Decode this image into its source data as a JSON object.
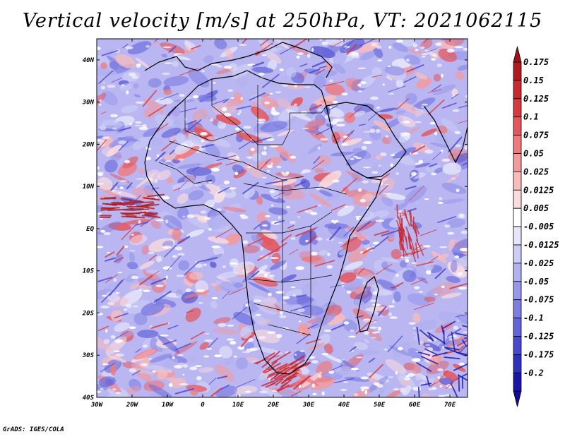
{
  "title": "Vertical velocity [m/s] at 250hPa, VT: 2021062115",
  "credit": "GrADS: IGES/COLA",
  "map": {
    "lat_labels": [
      "40N",
      "30N",
      "20N",
      "10N",
      "EQ",
      "10S",
      "20S",
      "30S",
      "40S"
    ],
    "lon_labels": [
      "30W",
      "20W",
      "10W",
      "0",
      "10E",
      "20E",
      "30E",
      "40E",
      "50E",
      "60E",
      "70E"
    ],
    "lat_range": [
      -40,
      45
    ],
    "lon_range": [
      -30,
      75
    ],
    "field": "vertical velocity",
    "colors": {
      "strong_up": "#b8141a",
      "up": "#f28a8a",
      "neutral": "#ffffff",
      "down": "#8c86ea",
      "strong_down": "#2a1fb0",
      "coast": "#000000"
    }
  },
  "colorbar": {
    "values": [
      "0.175",
      "0.15",
      "0.125",
      "0.1",
      "0.075",
      "0.05",
      "0.025",
      "0.0125",
      "0.005",
      "-0.005",
      "-0.0125",
      "-0.025",
      "-0.05",
      "-0.075",
      "-0.1",
      "-0.125",
      "-0.175",
      "-0.2"
    ],
    "colors": [
      "#b01a1e",
      "#c82830",
      "#d8383e",
      "#e5565c",
      "#ee7a7e",
      "#f39a9c",
      "#f8bcbd",
      "#fbdcdd",
      "#ffffff",
      "#e6e6fa",
      "#cccdf5",
      "#b2b2f0",
      "#9898ea",
      "#7e7ee2",
      "#6464d8",
      "#4a48cc",
      "#3030bf",
      "#1a14a8"
    ],
    "top_arrow_color": "#a01216",
    "bottom_arrow_color": "#140c96"
  }
}
